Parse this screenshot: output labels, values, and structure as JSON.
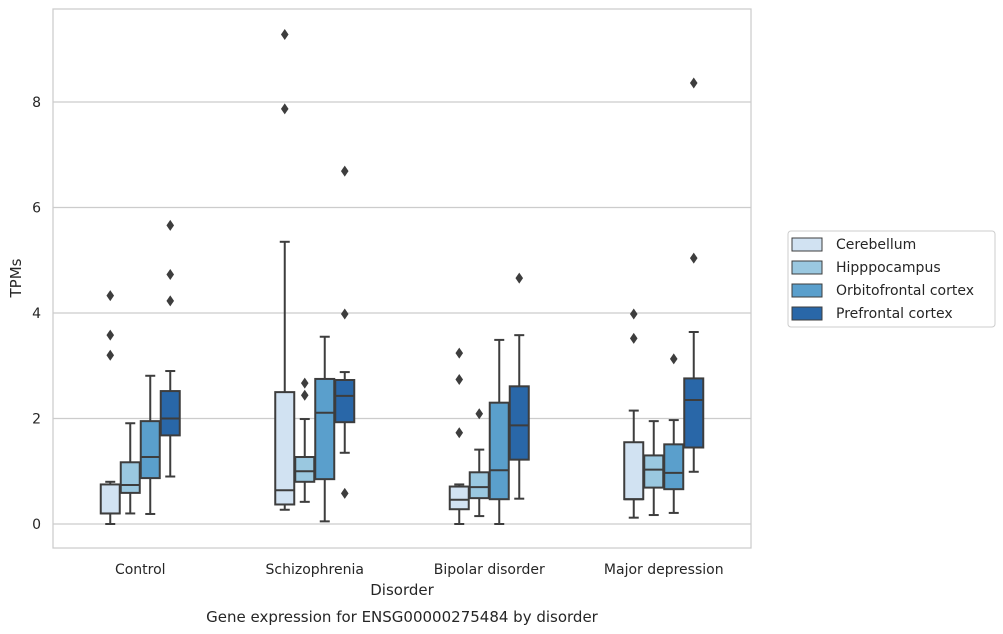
{
  "caption": "Gene expression for ENSG00000275484 by disorder",
  "chart_data": {
    "type": "box",
    "xlabel": "Disorder",
    "ylabel": "TPMs",
    "ylim": [
      -0.45,
      9.75
    ],
    "yticks": [
      0,
      2,
      4,
      6,
      8
    ],
    "grid": true,
    "legend_position": "right",
    "categories": [
      "Control",
      "Schizophrenia",
      "Bipolar disorder",
      "Major depression"
    ],
    "series": [
      {
        "name": "Cerebellum",
        "color": "#d1e2f2",
        "boxes": [
          {
            "whislo": 0.0,
            "q1": 0.2,
            "med": 0.2,
            "q3": 0.75,
            "whishi": 0.8,
            "fliers": [
              3.2,
              3.58,
              4.33
            ]
          },
          {
            "whislo": 0.27,
            "q1": 0.37,
            "med": 0.64,
            "q3": 2.5,
            "whishi": 5.35,
            "fliers": [
              7.87,
              9.28
            ]
          },
          {
            "whislo": 0.0,
            "q1": 0.28,
            "med": 0.46,
            "q3": 0.71,
            "whishi": 0.75,
            "fliers": [
              1.73,
              2.74,
              3.24
            ]
          },
          {
            "whislo": 0.12,
            "q1": 0.47,
            "med": 0.47,
            "q3": 1.55,
            "whishi": 2.15,
            "fliers": [
              3.52,
              3.98
            ]
          }
        ]
      },
      {
        "name": "Hipppocampus",
        "color": "#9ac8e0",
        "boxes": [
          {
            "whislo": 0.2,
            "q1": 0.59,
            "med": 0.74,
            "q3": 1.17,
            "whishi": 1.91,
            "fliers": []
          },
          {
            "whislo": 0.42,
            "q1": 0.8,
            "med": 1.0,
            "q3": 1.27,
            "whishi": 1.99,
            "fliers": [
              2.44,
              2.67
            ]
          },
          {
            "whislo": 0.15,
            "q1": 0.49,
            "med": 0.7,
            "q3": 0.98,
            "whishi": 1.41,
            "fliers": [
              2.09
            ]
          },
          {
            "whislo": 0.17,
            "q1": 0.69,
            "med": 1.03,
            "q3": 1.3,
            "whishi": 1.95,
            "fliers": []
          }
        ]
      },
      {
        "name": "Orbitofrontal cortex",
        "color": "#5a9fcc",
        "boxes": [
          {
            "whislo": 0.19,
            "q1": 0.87,
            "med": 1.27,
            "q3": 1.95,
            "whishi": 2.81,
            "fliers": []
          },
          {
            "whislo": 0.05,
            "q1": 0.85,
            "med": 2.11,
            "q3": 2.75,
            "whishi": 3.55,
            "fliers": []
          },
          {
            "whislo": 0.0,
            "q1": 0.47,
            "med": 1.02,
            "q3": 2.3,
            "whishi": 3.49,
            "fliers": []
          },
          {
            "whislo": 0.21,
            "q1": 0.66,
            "med": 0.97,
            "q3": 1.51,
            "whishi": 1.97,
            "fliers": [
              3.13
            ]
          }
        ]
      },
      {
        "name": "Prefrontal cortex",
        "color": "#2967a8",
        "boxes": [
          {
            "whislo": 0.9,
            "q1": 1.68,
            "med": 2.0,
            "q3": 2.52,
            "whishi": 2.9,
            "fliers": [
              4.23,
              4.73,
              5.66
            ]
          },
          {
            "whislo": 1.35,
            "q1": 1.93,
            "med": 2.43,
            "q3": 2.73,
            "whishi": 2.88,
            "fliers": [
              0.58,
              3.98,
              6.69
            ]
          },
          {
            "whislo": 0.48,
            "q1": 1.22,
            "med": 1.87,
            "q3": 2.61,
            "whishi": 3.58,
            "fliers": [
              4.66
            ]
          },
          {
            "whislo": 0.99,
            "q1": 1.45,
            "med": 2.35,
            "q3": 2.76,
            "whishi": 3.64,
            "fliers": [
              5.04,
              8.36
            ]
          }
        ]
      }
    ]
  }
}
